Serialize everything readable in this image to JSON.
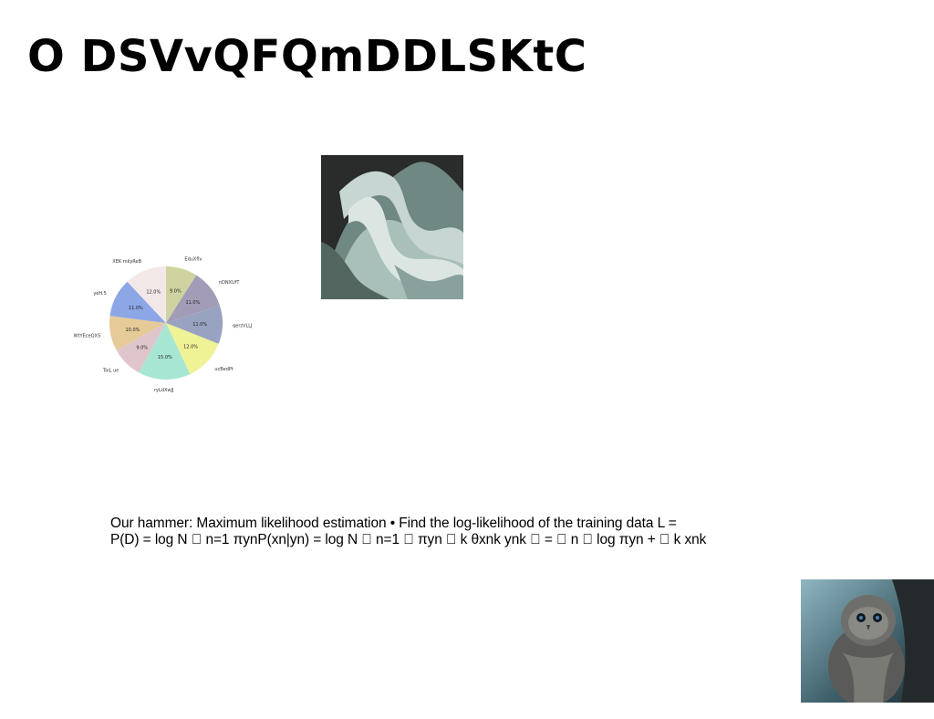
{
  "slide": {
    "title": "O DSVvQFQmDDLSKtC",
    "body_lines": [
      "Our hammer: Maximum likelihood estimation • Find the log-likelihood of the training data L =",
      "P(D) = log N ￿ n=1 πynP(xn|yn) = log N ￿ n=1 ￿ πyn ￿ k θxnk ynk ￿ = ￿ n ￿ log πyn + ￿ k xnk"
    ]
  },
  "chart_data": {
    "type": "pie",
    "categories": [
      "EduXflv",
      "nDNXUfT",
      "qerzVLLJ",
      "ucBedPt",
      "ryLdXwJJ",
      "TaiL ue",
      "WtYEceQXS",
      "yeH.5",
      "XEK mkyReB"
    ],
    "values": [
      9.0,
      11.0,
      11.0,
      12.0,
      15.0,
      9.0,
      10.0,
      11.0,
      12.0
    ],
    "value_labels": [
      "9.0%",
      "11.0%",
      "11.0%",
      "12.0%",
      "15.0%",
      "9.0%",
      "10.0%",
      "11.0%",
      "12.0%"
    ],
    "colors": [
      "#cfd3a0",
      "#a29cb6",
      "#97a3c0",
      "#eff295",
      "#a8e6d4",
      "#dfc6cc",
      "#e6cb99",
      "#8da6e6",
      "#f2e8e8"
    ],
    "start_angle": "90 deg, counterclockwise... drawn clockwise from top",
    "direction": "clockwise"
  },
  "images": {
    "abstract_wave": "abstract-wave-image",
    "owl": "owl-photo"
  }
}
